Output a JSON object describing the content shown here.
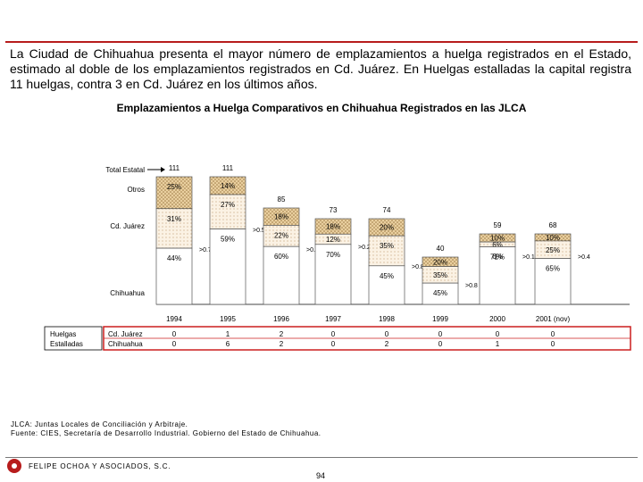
{
  "intro": "La Ciudad de Chihuahua presenta el mayor número de emplazamientos a huelga registrados en el Estado, estimado al doble de los emplazamientos registrados en Cd. Juárez. En Huelgas estalladas la capital registra 11 huelgas, contra 3 en Cd. Juárez en los últimos años.",
  "chart_data": {
    "type": "bar",
    "title": "Emplazamientos a Huelga Comparativos en Chihuahua Registrados en las JLCA",
    "row_labels": {
      "total": "Total Estatal",
      "otros": "Otros",
      "juarez": "Cd. Juárez",
      "chihuahua": "Chihuahua"
    },
    "categories": [
      "1994",
      "1995",
      "1996",
      "1997",
      "1998",
      "1999",
      "2000",
      "2001 (nov)"
    ],
    "totals": [
      "111",
      "111",
      "85",
      "73",
      "74",
      "40",
      "59",
      "68"
    ],
    "series": [
      {
        "name": "Otros",
        "values": [
          25,
          14,
          18,
          18,
          20,
          20,
          10,
          10
        ],
        "labels": [
          "25%",
          "14%",
          "18%",
          "18%",
          "20%",
          "20%",
          "10%",
          "10%"
        ],
        "color": "#d9b98a"
      },
      {
        "name": "Cd. Juárez",
        "values": [
          31,
          27,
          22,
          12,
          35,
          35,
          6,
          25
        ],
        "labels": [
          "31%",
          "27%",
          "22%",
          "12%",
          "35%",
          "35%",
          "6%",
          "25%"
        ],
        "color": "#f6e8d3"
      },
      {
        "name": "Chihuahua",
        "values": [
          44,
          59,
          60,
          70,
          45,
          45,
          71,
          65
        ],
        "labels": [
          "44%",
          "59%",
          "60%",
          "70%",
          "45%",
          "45%",
          "71%",
          "65%"
        ],
        "color": "#ffffff"
      }
    ],
    "extra_label": "6%",
    "change_labels": [
      ">0.7",
      ">0.5",
      ">0.4",
      ">0.2",
      ">0.8",
      ">0.8",
      ">0.1",
      ">0.4"
    ],
    "strikes": {
      "header": "Huelgas\nEstalladas",
      "rows": [
        {
          "label": "Cd. Juárez",
          "values": [
            "0",
            "1",
            "2",
            "0",
            "0",
            "0",
            "0",
            "0"
          ]
        },
        {
          "label": "Chihuahua",
          "values": [
            "0",
            "6",
            "2",
            "0",
            "2",
            "0",
            "1",
            "0"
          ]
        }
      ],
      "border_color": "#cc1f1f"
    }
  },
  "source": "JLCA: Juntas Locales de Conciliación y Arbitraje.\nFuente: CIES, Secretaría de Desarrollo Industrial. Gobierno del Estado de Chihuahua.",
  "company": "FELIPE OCHOA Y ASOCIADOS, S.C.",
  "page_number": "94",
  "accent_color": "#b71c1c"
}
